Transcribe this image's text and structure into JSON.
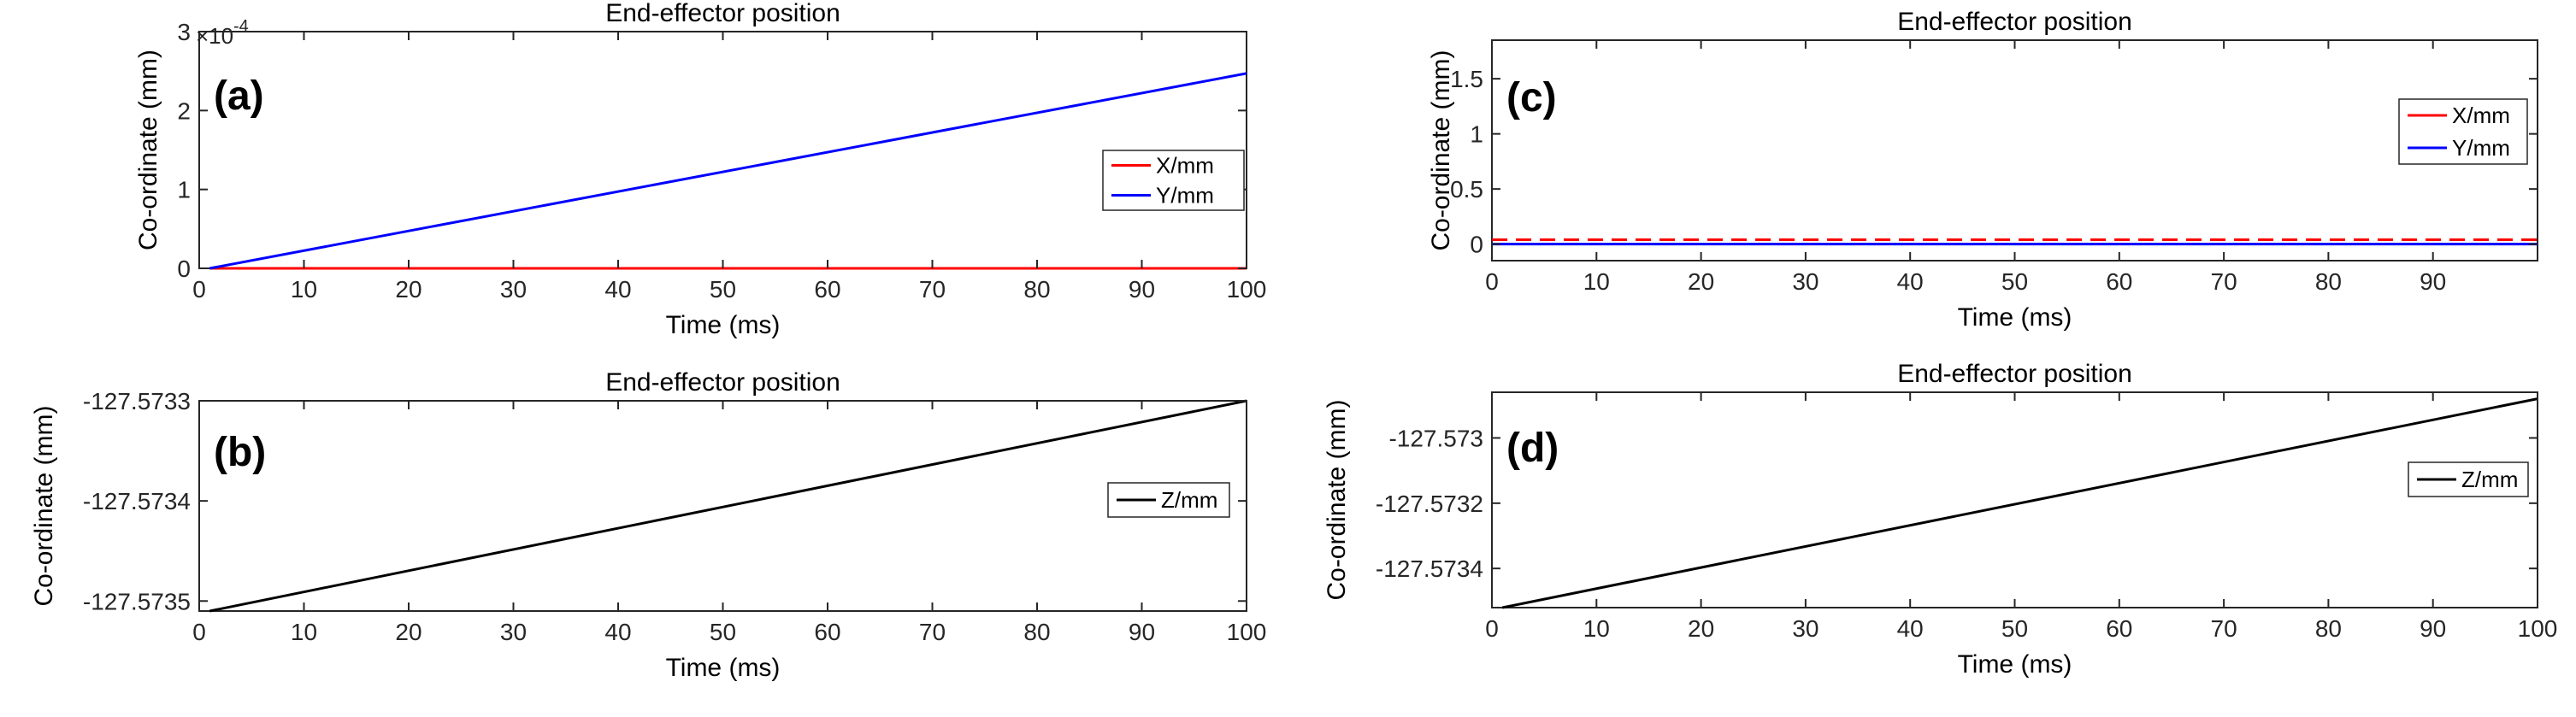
{
  "chart_data": [
    {
      "id": "a",
      "type": "line",
      "panel_label": "(a)",
      "title": "End-effector position",
      "xlabel": "Time (ms)",
      "ylabel": "Co-ordinate (mm)",
      "exponent_label": "×10",
      "exponent_power": "-4",
      "xlim": [
        0,
        100
      ],
      "ylim": [
        0,
        3
      ],
      "xticks": [
        0,
        10,
        20,
        30,
        40,
        50,
        60,
        70,
        80,
        90,
        100
      ],
      "xtick_labels": [
        "0",
        "10",
        "20",
        "30",
        "40",
        "50",
        "60",
        "70",
        "80",
        "90",
        "100"
      ],
      "yticks": [
        0,
        1,
        2,
        3
      ],
      "ytick_labels": [
        "0",
        "1",
        "2",
        "3"
      ],
      "grid": false,
      "legend_placement": "right",
      "series": [
        {
          "name": "X/mm",
          "color": "#ff0000",
          "style": "solid",
          "x": [
            1,
            100
          ],
          "y": [
            0,
            0
          ]
        },
        {
          "name": "Y/mm",
          "color": "#0000ff",
          "style": "solid",
          "x": [
            1,
            100
          ],
          "y": [
            0,
            2.47
          ]
        }
      ]
    },
    {
      "id": "b",
      "type": "line",
      "panel_label": "(b)",
      "title": "End-effector position",
      "xlabel": "Time (ms)",
      "ylabel": "Co-ordinate (mm)",
      "xlim": [
        0,
        100
      ],
      "ylim": [
        -127.57351,
        -127.5733
      ],
      "xticks": [
        0,
        10,
        20,
        30,
        40,
        50,
        60,
        70,
        80,
        90,
        100
      ],
      "xtick_labels": [
        "0",
        "10",
        "20",
        "30",
        "40",
        "50",
        "60",
        "70",
        "80",
        "90",
        "100"
      ],
      "yticks": [
        -127.5735,
        -127.5734,
        -127.5733
      ],
      "ytick_labels": [
        "-127.5735",
        "-127.5734",
        "-127.5733"
      ],
      "grid": false,
      "legend_placement": "right",
      "series": [
        {
          "name": "Z/mm",
          "color": "#000000",
          "style": "solid",
          "x": [
            1,
            100
          ],
          "y": [
            -127.57351,
            -127.5733
          ]
        }
      ]
    },
    {
      "id": "c",
      "type": "line",
      "panel_label": "(c)",
      "title": "End-effector position",
      "xlabel": "Time (ms)",
      "ylabel": "Co-ordinate (mm)",
      "xlim": [
        0,
        100
      ],
      "ylim": [
        -0.15,
        1.85
      ],
      "xticks": [
        0,
        10,
        20,
        30,
        40,
        50,
        60,
        70,
        80,
        90
      ],
      "xtick_labels": [
        "0",
        "10",
        "20",
        "30",
        "40",
        "50",
        "60",
        "70",
        "80",
        "90"
      ],
      "yticks": [
        0,
        0.5,
        1,
        1.5
      ],
      "ytick_labels": [
        "0",
        "0.5",
        "1",
        "1.5"
      ],
      "grid": false,
      "legend_placement": "top-right",
      "series": [
        {
          "name": "X/mm",
          "color": "#ff0000",
          "style": "dashed",
          "x": [
            0,
            100
          ],
          "y": [
            0.04,
            0.04
          ]
        },
        {
          "name": "Y/mm",
          "color": "#0000ff",
          "style": "solid",
          "x": [
            0,
            100
          ],
          "y": [
            0.0,
            0.0
          ]
        }
      ]
    },
    {
      "id": "d",
      "type": "line",
      "panel_label": "(d)",
      "title": "End-effector position",
      "xlabel": "Time (ms)",
      "ylabel": "Co-ordinate (mm)",
      "xlim": [
        0,
        100
      ],
      "ylim": [
        -127.57352,
        -127.57286
      ],
      "xticks": [
        0,
        10,
        20,
        30,
        40,
        50,
        60,
        70,
        80,
        90,
        100
      ],
      "xtick_labels": [
        "0",
        "10",
        "20",
        "30",
        "40",
        "50",
        "60",
        "70",
        "80",
        "90",
        "100"
      ],
      "yticks": [
        -127.5734,
        -127.5732,
        -127.573
      ],
      "ytick_labels": [
        "-127.5734",
        "-127.5732",
        "-127.573"
      ],
      "grid": false,
      "legend_placement": "right",
      "series": [
        {
          "name": "Z/mm",
          "color": "#000000",
          "style": "solid",
          "x": [
            1,
            100
          ],
          "y": [
            -127.57352,
            -127.57288
          ]
        }
      ]
    }
  ]
}
